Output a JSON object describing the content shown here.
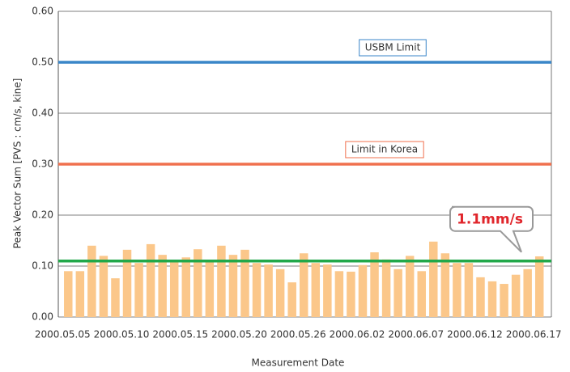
{
  "chart_data": {
    "type": "bar",
    "x_label": "Measurement Date",
    "y_label": "Peak Vector Sum [PVS : cm/s, kine]",
    "categories": [
      "2000.05.05",
      null,
      null,
      null,
      null,
      "2000.05.10",
      null,
      null,
      null,
      null,
      "2000.05.15",
      null,
      null,
      null,
      null,
      "2000.05.20",
      null,
      null,
      null,
      null,
      "2000.05.26",
      null,
      null,
      null,
      null,
      "2000.06.02",
      null,
      null,
      null,
      null,
      "2000.06.07",
      null,
      null,
      null,
      null,
      "2000.06.12",
      null,
      null,
      null,
      null,
      "2000.06.17"
    ],
    "values": [
      0.09,
      0.09,
      0.14,
      0.12,
      0.076,
      0.132,
      0.106,
      0.143,
      0.122,
      0.111,
      0.117,
      0.133,
      0.11,
      0.14,
      0.122,
      0.132,
      0.106,
      0.103,
      0.094,
      0.068,
      0.125,
      0.106,
      0.103,
      0.09,
      0.089,
      0.102,
      0.127,
      0.113,
      0.094,
      0.12,
      0.09,
      0.148,
      0.125,
      0.106,
      0.106,
      0.078,
      0.07,
      0.065,
      0.083,
      0.094,
      0.119
    ],
    "color": "#fbc78a",
    "ylim": [
      0,
      0.6
    ],
    "yticks": [
      {
        "value": 0,
        "label": "0.00"
      },
      {
        "value": 0.1,
        "label": "0.10"
      },
      {
        "value": 0.2,
        "label": "0.20"
      },
      {
        "value": 0.3,
        "label": "0.30"
      },
      {
        "value": 0.4,
        "label": "0.40"
      },
      {
        "value": 0.5,
        "label": "0.50"
      },
      {
        "value": 0.6,
        "label": "0.60"
      }
    ],
    "grid": true,
    "reference_lines": [
      {
        "label": "USBM Limit",
        "value": 0.5,
        "color": "#3a86c8"
      },
      {
        "label": "Limit in Korea",
        "value": 0.3,
        "color": "#f0704e"
      },
      {
        "label": "1.1mm/s",
        "value": 0.11,
        "color": "#22a84a"
      }
    ]
  }
}
